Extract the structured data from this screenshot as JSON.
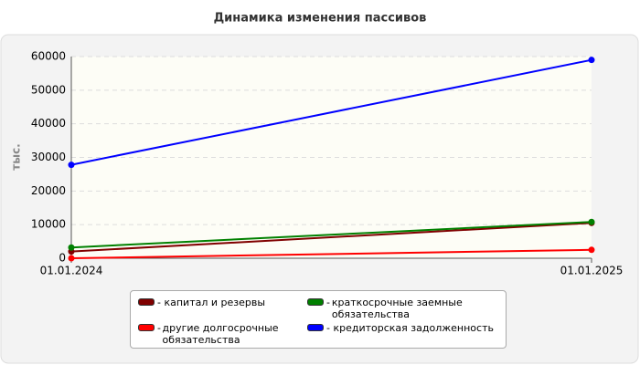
{
  "chart_data": {
    "type": "line",
    "title": "Динамика изменения пассивов",
    "y_label": "тыс.",
    "categories": [
      "01.01.2024",
      "01.01.2025"
    ],
    "series": [
      {
        "name": "капитал и резервы",
        "color": "#800000",
        "values": [
          2000,
          10500
        ]
      },
      {
        "name": "другие долгосрочные обязательства",
        "color": "#ff0000",
        "values": [
          0,
          2500
        ]
      },
      {
        "name": "краткосрочные заемные обязательства",
        "color": "#008000",
        "values": [
          3200,
          10800
        ]
      },
      {
        "name": "кредиторская задолженность",
        "color": "#0000ff",
        "values": [
          27800,
          59000
        ]
      }
    ],
    "ylim": [
      0,
      60000
    ],
    "yticks": [
      0,
      10000,
      20000,
      30000,
      40000,
      50000,
      60000
    ],
    "grid": true
  }
}
